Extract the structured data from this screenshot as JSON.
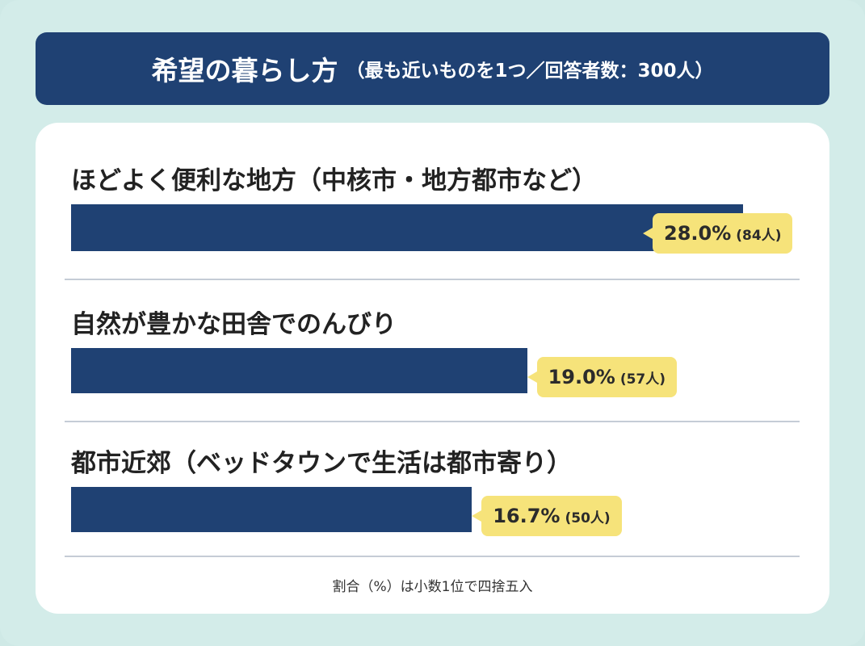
{
  "title": {
    "main": "希望の暮らし方",
    "sub": "（最も近いものを1つ／回答者数：300人）"
  },
  "chart_data": {
    "type": "bar",
    "orientation": "horizontal",
    "categories": [
      "ほどよく便利な地方（中核市・地方都市など）",
      "自然が豊かな田舎でのんびり",
      "都市近郊（ベッドタウンで生活は都市寄り）"
    ],
    "values": [
      28.0,
      19.0,
      16.7
    ],
    "value_labels": [
      "28.0%",
      "19.0%",
      "16.7%"
    ],
    "count_labels": [
      "(84人)",
      "(57人)",
      "(50人)"
    ],
    "counts": [
      84,
      57,
      50
    ],
    "unit": "%",
    "grid": false,
    "bar_color": "#1f4173",
    "callout_color": "#f6e37a"
  },
  "footnote": "割合（%）は小数1位で四捨五入"
}
